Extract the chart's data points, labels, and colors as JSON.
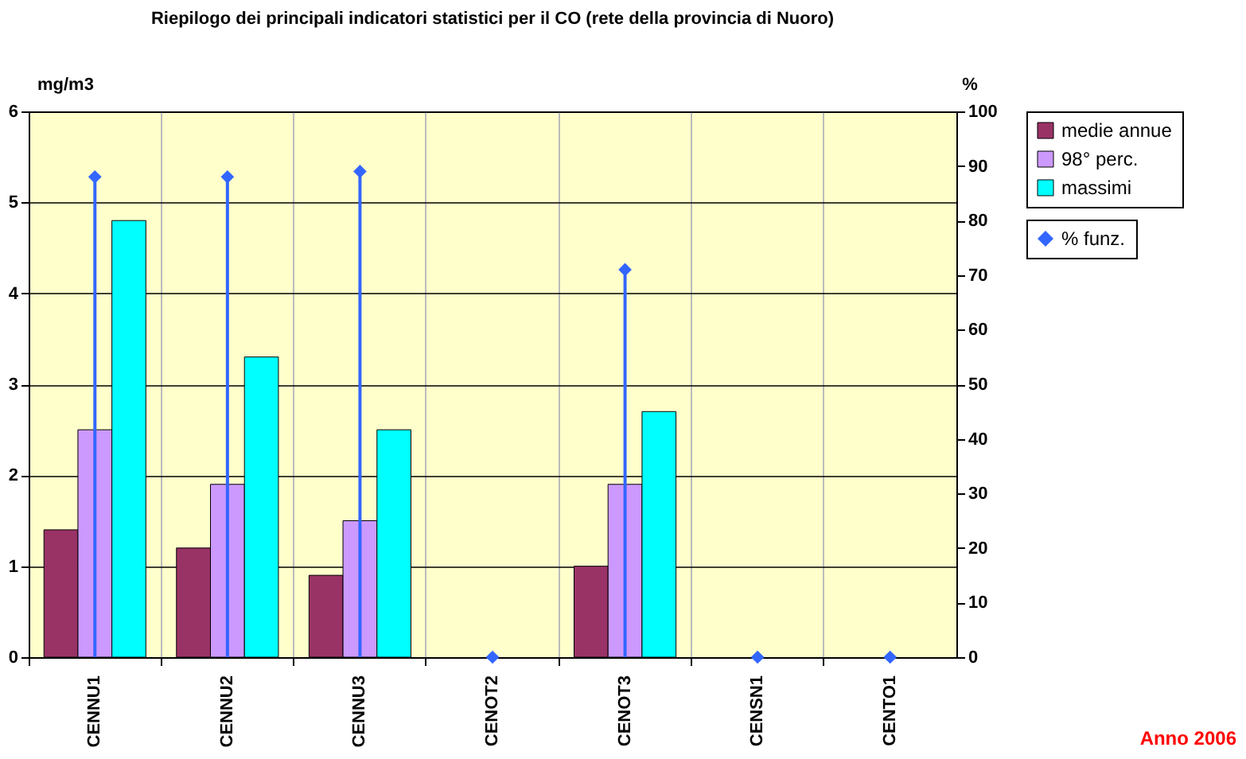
{
  "chart_data": {
    "type": "bar",
    "title": "Riepilogo dei principali indicatori statistici per il CO (rete della provincia di Nuoro)",
    "ylabel": "mg/m3",
    "y2label": "%",
    "categories": [
      "CENNU1",
      "CENNU2",
      "CENNU3",
      "CENOT2",
      "CENOT3",
      "CENSN1",
      "CENTO1"
    ],
    "series": [
      {
        "name": "medie annue",
        "color": "#993366",
        "values": [
          1.4,
          1.2,
          0.9,
          null,
          1.0,
          null,
          null
        ]
      },
      {
        "name": "98° perc.",
        "color": "#cc99ff",
        "values": [
          2.5,
          1.9,
          1.5,
          null,
          1.9,
          null,
          null
        ]
      },
      {
        "name": "massimi",
        "color": "#00ffff",
        "values": [
          4.8,
          3.3,
          2.5,
          null,
          2.7,
          null,
          null
        ]
      },
      {
        "name": "% funz.",
        "color": "#3366ff",
        "type": "lollipop",
        "axis": "y2",
        "marker": "diamond",
        "values": [
          88,
          88,
          89,
          0,
          71,
          0,
          0
        ]
      }
    ],
    "ylim": [
      0,
      6
    ],
    "yticks": [
      0,
      1,
      2,
      3,
      4,
      5,
      6
    ],
    "y2lim": [
      0,
      100
    ],
    "y2ticks": [
      0,
      10,
      20,
      30,
      40,
      50,
      60,
      70,
      80,
      90,
      100
    ],
    "grid": true,
    "legend": "top right",
    "annotations": [
      "Anno 2006"
    ]
  }
}
